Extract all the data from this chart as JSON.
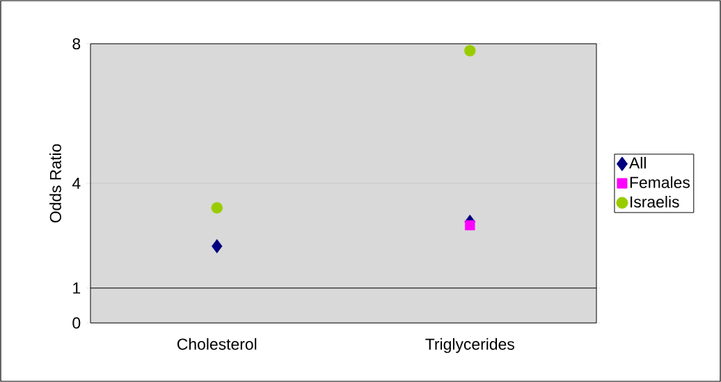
{
  "chart_data": {
    "type": "scatter",
    "ylabel": "Odds Ratio",
    "categories": [
      "Cholesterol",
      "Triglycerides"
    ],
    "series": [
      {
        "name": "All",
        "color": "#000080",
        "marker": "diamond",
        "values": [
          2.2,
          2.9
        ]
      },
      {
        "name": "Females",
        "color": "#ff00ff",
        "marker": "square",
        "values": [
          null,
          2.8
        ]
      },
      {
        "name": "Israelis",
        "color": "#99cc00",
        "marker": "circle",
        "values": [
          3.3,
          7.8
        ]
      }
    ],
    "ylim": [
      0,
      8
    ],
    "yticks": [
      0,
      1,
      4,
      8
    ],
    "grid": "y",
    "legend": "right",
    "ref_lines": [
      {
        "axis": "y",
        "value": 1,
        "color": "#000000"
      }
    ]
  }
}
